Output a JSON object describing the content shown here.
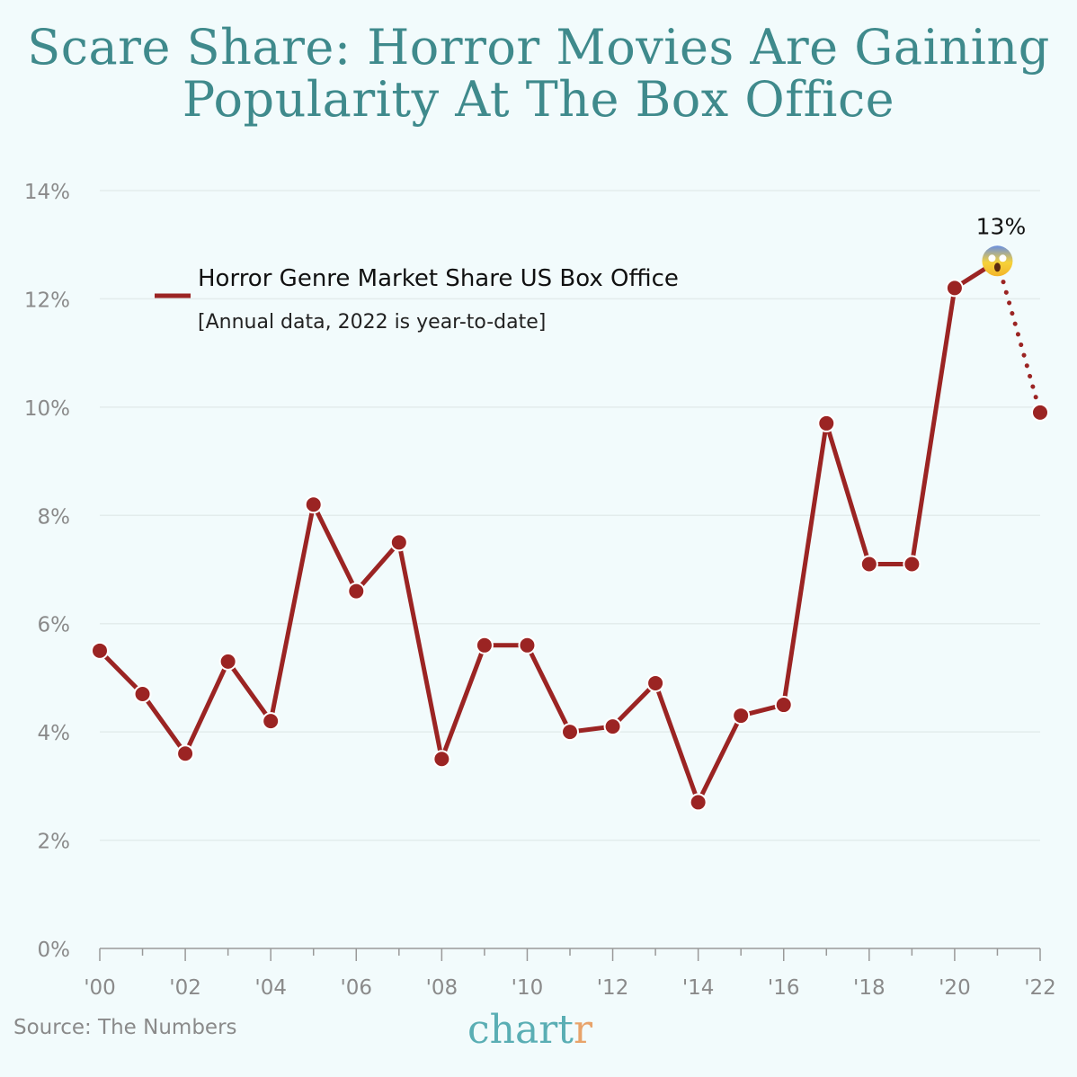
{
  "chart_data": {
    "type": "line",
    "title": "Scare Share: Horror Movies Are Gaining Popularity At The Box Office",
    "legend": {
      "label": "Horror Genre Market Share US Box Office",
      "note": "[Annual data, 2022 is year-to-date]",
      "placement": "top-left"
    },
    "x": [
      2000,
      2001,
      2002,
      2003,
      2004,
      2005,
      2006,
      2007,
      2008,
      2009,
      2010,
      2011,
      2012,
      2013,
      2014,
      2015,
      2016,
      2017,
      2018,
      2019,
      2020,
      2021,
      2022
    ],
    "series": [
      {
        "name": "Horror Genre Market Share US Box Office",
        "values": [
          5.5,
          4.7,
          3.6,
          5.3,
          4.2,
          8.2,
          6.6,
          7.5,
          3.5,
          5.6,
          5.6,
          4.0,
          4.1,
          4.9,
          2.7,
          4.3,
          4.5,
          9.7,
          7.1,
          7.1,
          12.2,
          12.7,
          9.9
        ],
        "color": "#9b2423"
      }
    ],
    "dotted_segment_from": 2021,
    "annotation": {
      "x": 2021,
      "label": "13%",
      "marker": "scream-emoji"
    },
    "ylim": [
      0,
      14
    ],
    "yticks": [
      0,
      2,
      4,
      6,
      8,
      10,
      12,
      14
    ],
    "ytick_labels": [
      "0%",
      "2%",
      "4%",
      "6%",
      "8%",
      "10%",
      "12%",
      "14%"
    ],
    "xtick_labels": [
      "'00",
      "'02",
      "'04",
      "'06",
      "'08",
      "'10",
      "'12",
      "'14",
      "'16",
      "'18",
      "'20",
      "'22"
    ],
    "grid": true,
    "source": "Source: The Numbers",
    "brand": {
      "main": "chart",
      "accent": "r"
    },
    "colors": {
      "title": "#3f8a8c",
      "line": "#9b2423",
      "background": "#f2fbfc"
    }
  }
}
